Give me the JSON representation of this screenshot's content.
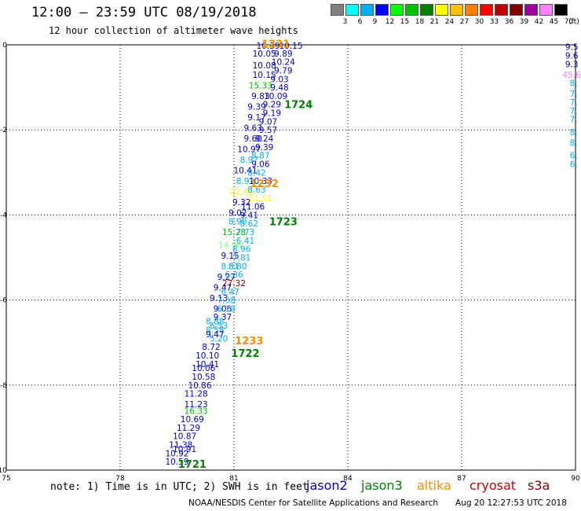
{
  "header": {
    "title": "12:00 – 23:59 UTC 08/19/2018",
    "subtitle": "12 hour collection of altimeter wave heights"
  },
  "legend": {
    "unit": "(ft)",
    "bins": [
      {
        "label": "3",
        "color": "#808080"
      },
      {
        "label": "6",
        "color": "#00ffff"
      },
      {
        "label": "9",
        "color": "#00b0ff"
      },
      {
        "label": "12",
        "color": "#0000ff"
      },
      {
        "label": "15",
        "color": "#00ff00"
      },
      {
        "label": "18",
        "color": "#00c000"
      },
      {
        "label": "21",
        "color": "#008000"
      },
      {
        "label": "24",
        "color": "#ffff00"
      },
      {
        "label": "27",
        "color": "#ffc000"
      },
      {
        "label": "30",
        "color": "#ff8000"
      },
      {
        "label": "33",
        "color": "#ff0000"
      },
      {
        "label": "36",
        "color": "#c00000"
      },
      {
        "label": "39",
        "color": "#800000"
      },
      {
        "label": "42",
        "color": "#a000a0"
      },
      {
        "label": "45",
        "color": "#ff80ff"
      },
      {
        "label": "70",
        "color": "#000000"
      }
    ]
  },
  "footer": {
    "note": "note: 1) Time is in UTC; 2) SWH is in feet",
    "satellites": [
      {
        "name": "jason2",
        "color": "#0000cc"
      },
      {
        "name": "jason3",
        "color": "#008000"
      },
      {
        "name": "altika",
        "color": "#ff8c00"
      },
      {
        "name": "cryosat",
        "color": "#cc0000"
      },
      {
        "name": "s3a",
        "color": "#800000"
      }
    ],
    "credit": "NOAA/NESDIS Center for Satellite Applications and Research",
    "timestamp": "Aug 20 12:27:53 UTC 2018"
  },
  "chart_data": {
    "type": "scatter",
    "xlim": [
      75,
      90
    ],
    "ylim": [
      -10,
      0
    ],
    "xticks": [
      75,
      78,
      81,
      84,
      87,
      90
    ],
    "yticks": [
      0,
      -2,
      -4,
      -6,
      -8,
      -10
    ],
    "grid": true,
    "points": [
      {
        "x": 81.9,
        "y": -0.02,
        "label": "10.39",
        "color": "#0000cc"
      },
      {
        "x": 82.5,
        "y": -0.02,
        "label": "10.15",
        "color": "#0000cc"
      },
      {
        "x": 82.3,
        "y": -0.2,
        "label": "9.89",
        "color": "#0000cc"
      },
      {
        "x": 81.8,
        "y": -0.2,
        "label": "10.05",
        "color": "#0000cc"
      },
      {
        "x": 82.3,
        "y": -0.4,
        "label": "10.24",
        "color": "#0000cc"
      },
      {
        "x": 81.8,
        "y": -0.48,
        "label": "10.08",
        "color": "#0000cc"
      },
      {
        "x": 82.3,
        "y": -0.6,
        "label": "9.79",
        "color": "#0000cc"
      },
      {
        "x": 81.8,
        "y": -0.7,
        "label": "10.15",
        "color": "#0000cc"
      },
      {
        "x": 82.2,
        "y": -0.8,
        "label": "9.03",
        "color": "#0000cc"
      },
      {
        "x": 81.7,
        "y": -0.95,
        "label": "15.33",
        "color": "#00c000"
      },
      {
        "x": 82.2,
        "y": -1.0,
        "label": "9.48",
        "color": "#0000cc"
      },
      {
        "x": 81.7,
        "y": -1.2,
        "label": "9.83",
        "color": "#0000cc"
      },
      {
        "x": 82.1,
        "y": -1.2,
        "label": "10.09",
        "color": "#0000cc"
      },
      {
        "x": 81.6,
        "y": -1.45,
        "label": "9.39",
        "color": "#0000cc"
      },
      {
        "x": 82.0,
        "y": -1.4,
        "label": "9.29",
        "color": "#0000cc"
      },
      {
        "x": 82.0,
        "y": -1.6,
        "label": "9.19",
        "color": "#0000cc"
      },
      {
        "x": 81.6,
        "y": -1.7,
        "label": "9.17",
        "color": "#0000cc"
      },
      {
        "x": 81.9,
        "y": -1.8,
        "label": "9.07",
        "color": "#0000cc"
      },
      {
        "x": 81.5,
        "y": -1.95,
        "label": "9.63",
        "color": "#0000cc"
      },
      {
        "x": 81.9,
        "y": -2.0,
        "label": "9.57",
        "color": "#0000cc"
      },
      {
        "x": 81.5,
        "y": -2.2,
        "label": "9.60",
        "color": "#0000cc"
      },
      {
        "x": 81.8,
        "y": -2.2,
        "label": "9.24",
        "color": "#0000cc"
      },
      {
        "x": 81.4,
        "y": -2.45,
        "label": "10.97",
        "color": "#0000cc"
      },
      {
        "x": 81.8,
        "y": -2.4,
        "label": "9.39",
        "color": "#0000cc"
      },
      {
        "x": 81.7,
        "y": -2.6,
        "label": "8.87",
        "color": "#00b0ff"
      },
      {
        "x": 81.4,
        "y": -2.7,
        "label": "8.97",
        "color": "#00b0ff"
      },
      {
        "x": 81.7,
        "y": -2.8,
        "label": "9.06",
        "color": "#0000cc"
      },
      {
        "x": 81.3,
        "y": -2.95,
        "label": "10.41",
        "color": "#0000cc"
      },
      {
        "x": 81.6,
        "y": -3.0,
        "label": "8.42",
        "color": "#00b0ff"
      },
      {
        "x": 81.3,
        "y": -3.2,
        "label": "8.91",
        "color": "#00b0ff"
      },
      {
        "x": 81.7,
        "y": -3.2,
        "label": "10.33",
        "color": "#0000cc"
      },
      {
        "x": 81.2,
        "y": -3.45,
        "label": "22.45",
        "color": "#ffff00"
      },
      {
        "x": 81.6,
        "y": -3.4,
        "label": "8.63",
        "color": "#00b0ff"
      },
      {
        "x": 81.7,
        "y": -3.6,
        "label": "21.51",
        "color": "#ffff00"
      },
      {
        "x": 81.2,
        "y": -3.7,
        "label": "9.32",
        "color": "#0000cc"
      },
      {
        "x": 81.5,
        "y": -3.8,
        "label": "11.06",
        "color": "#0000cc"
      },
      {
        "x": 81.1,
        "y": -3.95,
        "label": "9.02",
        "color": "#0000cc"
      },
      {
        "x": 81.4,
        "y": -4.0,
        "label": "9.41",
        "color": "#0000cc"
      },
      {
        "x": 81.1,
        "y": -4.15,
        "label": "8.90",
        "color": "#00b0ff"
      },
      {
        "x": 81.4,
        "y": -4.2,
        "label": "8.62",
        "color": "#00b0ff"
      },
      {
        "x": 81.0,
        "y": -4.4,
        "label": "15.28",
        "color": "#00c000"
      },
      {
        "x": 81.3,
        "y": -4.4,
        "label": "7.73",
        "color": "#00b0ff"
      },
      {
        "x": 81.3,
        "y": -4.6,
        "label": "6.41",
        "color": "#00b0ff"
      },
      {
        "x": 80.9,
        "y": -4.7,
        "label": "14.96",
        "color": "#80ff80"
      },
      {
        "x": 81.2,
        "y": -4.8,
        "label": "8.96",
        "color": "#00b0ff"
      },
      {
        "x": 80.9,
        "y": -4.95,
        "label": "9.15",
        "color": "#0000cc"
      },
      {
        "x": 81.2,
        "y": -5.0,
        "label": "7.81",
        "color": "#00b0ff"
      },
      {
        "x": 80.9,
        "y": -5.2,
        "label": "8.51",
        "color": "#00b0ff"
      },
      {
        "x": 81.1,
        "y": -5.2,
        "label": "8.80",
        "color": "#00b0ff"
      },
      {
        "x": 81.0,
        "y": -5.4,
        "label": "6.36",
        "color": "#00b0ff"
      },
      {
        "x": 80.8,
        "y": -5.45,
        "label": "9.27",
        "color": "#0000cc"
      },
      {
        "x": 81.0,
        "y": -5.6,
        "label": "27.32",
        "color": "#800000"
      },
      {
        "x": 80.7,
        "y": -5.7,
        "label": "9.47",
        "color": "#0000cc"
      },
      {
        "x": 80.9,
        "y": -5.8,
        "label": "6.47",
        "color": "#00b0ff"
      },
      {
        "x": 80.6,
        "y": -5.95,
        "label": "9.13",
        "color": "#0000cc"
      },
      {
        "x": 80.8,
        "y": -6.0,
        "label": "7.58",
        "color": "#00b0ff"
      },
      {
        "x": 80.7,
        "y": -6.2,
        "label": "9.06",
        "color": "#0000cc"
      },
      {
        "x": 80.8,
        "y": -6.2,
        "label": "6.18",
        "color": "#00b0ff"
      },
      {
        "x": 80.7,
        "y": -6.4,
        "label": "9.37",
        "color": "#0000cc"
      },
      {
        "x": 80.5,
        "y": -6.5,
        "label": "8.88",
        "color": "#00b0ff"
      },
      {
        "x": 80.6,
        "y": -6.6,
        "label": "6.53",
        "color": "#00b0ff"
      },
      {
        "x": 80.5,
        "y": -6.7,
        "label": "8.58",
        "color": "#00b0ff"
      },
      {
        "x": 80.5,
        "y": -6.8,
        "label": "9.47",
        "color": "#0000cc"
      },
      {
        "x": 80.6,
        "y": -6.9,
        "label": "5.20",
        "color": "#00b0ff"
      },
      {
        "x": 80.4,
        "y": -7.1,
        "label": "8.72",
        "color": "#0000cc"
      },
      {
        "x": 80.3,
        "y": -7.3,
        "label": "10.10",
        "color": "#0000cc"
      },
      {
        "x": 80.3,
        "y": -7.5,
        "label": "10.41",
        "color": "#0000cc"
      },
      {
        "x": 80.2,
        "y": -7.6,
        "label": "10.06",
        "color": "#0000cc"
      },
      {
        "x": 80.2,
        "y": -7.8,
        "label": "10.58",
        "color": "#0000cc"
      },
      {
        "x": 80.1,
        "y": -8.0,
        "label": "10.86",
        "color": "#0000cc"
      },
      {
        "x": 80.0,
        "y": -8.2,
        "label": "11.28",
        "color": "#0000cc"
      },
      {
        "x": 80.0,
        "y": -8.45,
        "label": "11.23",
        "color": "#0000cc"
      },
      {
        "x": 80.0,
        "y": -8.6,
        "label": "16.33",
        "color": "#00c000"
      },
      {
        "x": 79.9,
        "y": -8.8,
        "label": "10.69",
        "color": "#0000cc"
      },
      {
        "x": 79.8,
        "y": -9.0,
        "label": "11.29",
        "color": "#0000cc"
      },
      {
        "x": 79.7,
        "y": -9.2,
        "label": "10.87",
        "color": "#0000cc"
      },
      {
        "x": 79.6,
        "y": -9.4,
        "label": "11.38",
        "color": "#0000cc"
      },
      {
        "x": 79.7,
        "y": -9.5,
        "label": "10.91",
        "color": "#0000cc"
      },
      {
        "x": 79.5,
        "y": -9.6,
        "label": "10.92",
        "color": "#0000cc"
      },
      {
        "x": 79.5,
        "y": -9.8,
        "label": "10.59",
        "color": "#0000cc"
      },
      {
        "x": 89.9,
        "y": -0.05,
        "label": "9.5",
        "color": "#0000cc"
      },
      {
        "x": 89.9,
        "y": -0.25,
        "label": "9.6",
        "color": "#0000cc"
      },
      {
        "x": 89.9,
        "y": -0.45,
        "label": "9.3",
        "color": "#0000cc"
      },
      {
        "x": 89.9,
        "y": -0.7,
        "label": "45.6",
        "color": "#ff80ff"
      },
      {
        "x": 89.95,
        "y": -0.9,
        "label": "8.",
        "color": "#00b0ff"
      },
      {
        "x": 89.95,
        "y": -1.15,
        "label": "7.",
        "color": "#00b0ff"
      },
      {
        "x": 89.95,
        "y": -1.35,
        "label": "7.",
        "color": "#00b0ff"
      },
      {
        "x": 89.95,
        "y": -1.55,
        "label": "7.",
        "color": "#00b0ff"
      },
      {
        "x": 89.95,
        "y": -1.75,
        "label": "7.",
        "color": "#00b0ff"
      },
      {
        "x": 89.95,
        "y": -2.05,
        "label": "8.",
        "color": "#00b0ff"
      },
      {
        "x": 89.95,
        "y": -2.3,
        "label": "8.",
        "color": "#00b0ff"
      },
      {
        "x": 89.95,
        "y": -2.6,
        "label": "6.",
        "color": "#00b0ff"
      },
      {
        "x": 89.95,
        "y": -2.8,
        "label": "6.",
        "color": "#00b0ff"
      }
    ],
    "time_labels": [
      {
        "x": 82.1,
        "y": 0.03,
        "label": "1231",
        "color": "#ff8c00"
      },
      {
        "x": 82.7,
        "y": -1.4,
        "label": "1724",
        "color": "#008000"
      },
      {
        "x": 81.8,
        "y": -3.25,
        "label": "1232",
        "color": "#ff8c00"
      },
      {
        "x": 82.3,
        "y": -4.15,
        "label": "1723",
        "color": "#008000"
      },
      {
        "x": 81.4,
        "y": -6.95,
        "label": "1233",
        "color": "#ff8c00"
      },
      {
        "x": 81.3,
        "y": -7.25,
        "label": "1722",
        "color": "#008000"
      },
      {
        "x": 79.9,
        "y": -9.85,
        "label": "1721",
        "color": "#008000"
      }
    ]
  }
}
